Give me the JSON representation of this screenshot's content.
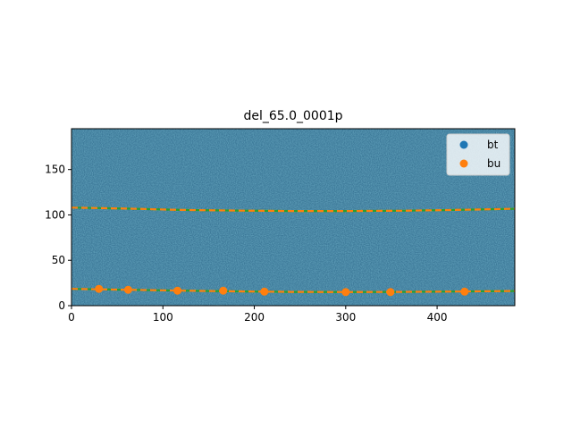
{
  "chart_data": {
    "type": "scatter",
    "title": "del_65.0_0001p",
    "xlabel": "",
    "ylabel": "",
    "xlim": [
      0,
      485
    ],
    "ylim": [
      0,
      195
    ],
    "y_inverted": false,
    "xticks": [
      0,
      100,
      200,
      300,
      400
    ],
    "yticks": [
      0,
      50,
      100,
      150
    ],
    "background": "noisy spectral image (viridis colormap)",
    "grid": false,
    "legend_position": "top-right",
    "series": [
      {
        "name": "bt",
        "kind": "scatter",
        "color": "#1f77b4",
        "x": [],
        "y": []
      },
      {
        "name": "bu",
        "kind": "scatter",
        "color": "#ff7f0e",
        "x": [
          30,
          62,
          116,
          166,
          211,
          300,
          349,
          430
        ],
        "y": [
          18.5,
          17.5,
          16.5,
          16.5,
          15.5,
          15,
          15,
          15.5
        ]
      }
    ],
    "traces": [
      {
        "color": "#2ca02c",
        "style": "solid",
        "x": [
          0,
          60,
          120,
          180,
          240,
          300,
          360,
          420,
          485
        ],
        "y": [
          108,
          107,
          105.5,
          104.8,
          104.3,
          104.3,
          104.6,
          105.5,
          106.8
        ]
      },
      {
        "color": "#ff7f0e",
        "style": "dashed",
        "x": [
          0,
          60,
          120,
          180,
          240,
          300,
          360,
          420,
          485
        ],
        "y": [
          108,
          107,
          105.5,
          104.8,
          104.3,
          104.3,
          104.6,
          105.5,
          106.8
        ]
      },
      {
        "color": "#2ca02c",
        "style": "solid",
        "x": [
          0,
          60,
          120,
          180,
          240,
          300,
          360,
          420,
          485
        ],
        "y": [
          18.5,
          17.5,
          16.5,
          15.8,
          15.2,
          15,
          15.2,
          15.6,
          16.2
        ]
      },
      {
        "color": "#ff7f0e",
        "style": "dashed",
        "x": [
          0,
          60,
          120,
          180,
          240,
          300,
          360,
          420,
          485
        ],
        "y": [
          18.5,
          17.5,
          16.5,
          15.8,
          15.2,
          15,
          15.2,
          15.6,
          16.2
        ]
      }
    ],
    "colors": {
      "image_base": "#2f6a8c",
      "frame": "#000000"
    }
  }
}
